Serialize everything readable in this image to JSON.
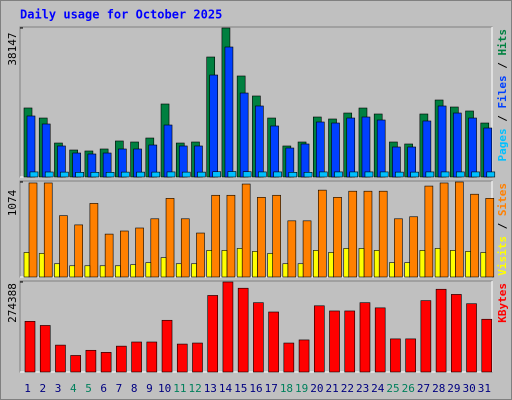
{
  "title": "Daily usage for October 2025",
  "legend_separator": " / ",
  "chart_data": [
    {
      "type": "bar",
      "ylim": [
        0,
        38147
      ],
      "yticks": [
        38147
      ],
      "series": [
        {
          "name": "Hits",
          "color": "#008040",
          "values": [
            17670,
            15100,
            8700,
            6910,
            6660,
            7170,
            9220,
            8960,
            9980,
            18690,
            8700,
            8960,
            30720,
            38147,
            25860,
            20740,
            15100,
            7940,
            8960,
            15360,
            14850,
            16380,
            17660,
            16130,
            8960,
            8450,
            16130,
            19710,
            17920,
            16900,
            13820
          ]
        },
        {
          "name": "Files",
          "color": "#0040ff",
          "values": [
            15620,
            13570,
            7940,
            6140,
            5890,
            6140,
            7170,
            7170,
            8190,
            13310,
            7940,
            7940,
            26110,
            33280,
            21500,
            18180,
            13060,
            7420,
            8450,
            14080,
            13820,
            15100,
            15360,
            14590,
            7680,
            7680,
            14340,
            18180,
            16380,
            15100,
            12540
          ]
        },
        {
          "name": "Pages",
          "color": "#00c0ff",
          "values": [
            1300,
            1280,
            1250,
            1200,
            1200,
            1200,
            1250,
            1250,
            1250,
            1300,
            1250,
            1250,
            1350,
            1400,
            1350,
            1300,
            1300,
            1200,
            1200,
            1300,
            1300,
            1300,
            1300,
            1300,
            1250,
            1250,
            1300,
            1300,
            1300,
            1300,
            1300
          ]
        }
      ]
    },
    {
      "type": "bar",
      "ylim": [
        0,
        1074
      ],
      "yticks": [
        1074
      ],
      "series": [
        {
          "name": "Sites",
          "color": "#ff8000",
          "values": [
            1063,
            1063,
            693,
            589,
            832,
            485,
            520,
            554,
            658,
            889,
            658,
            497,
            924,
            924,
            1051,
            901,
            924,
            635,
            635,
            982,
            901,
            970,
            970,
            970,
            658,
            681,
            1028,
            1063,
            1074,
            936,
            889
          ]
        },
        {
          "name": "Visits",
          "color": "#ffff00",
          "values": [
            277,
            266,
            150,
            127,
            127,
            127,
            127,
            139,
            162,
            219,
            150,
            150,
            300,
            300,
            323,
            289,
            266,
            150,
            150,
            300,
            277,
            323,
            323,
            300,
            162,
            162,
            300,
            323,
            300,
            289,
            277
          ]
        }
      ]
    },
    {
      "type": "bar",
      "ylim": [
        0,
        274388
      ],
      "yticks": [
        274388
      ],
      "categories": [
        "1",
        "2",
        "3",
        "4",
        "5",
        "6",
        "7",
        "8",
        "9",
        "10",
        "11",
        "12",
        "13",
        "14",
        "15",
        "16",
        "17",
        "18",
        "19",
        "20",
        "21",
        "22",
        "23",
        "24",
        "25",
        "26",
        "27",
        "28",
        "29",
        "30",
        "31"
      ],
      "category_colors": [
        "#000080",
        "#000080",
        "#000080",
        "#00805c",
        "#00805c",
        "#000080",
        "#000080",
        "#000080",
        "#000080",
        "#000080",
        "#00805c",
        "#00805c",
        "#000080",
        "#000080",
        "#000080",
        "#000080",
        "#000080",
        "#00805c",
        "#00805c",
        "#000080",
        "#000080",
        "#000080",
        "#000080",
        "#000080",
        "#00805c",
        "#00805c",
        "#000080",
        "#000080",
        "#000080",
        "#000080",
        "#000080"
      ],
      "series": [
        {
          "name": "KBytes",
          "color": "#ff0000",
          "values": [
            154540,
            141930,
            82000,
            50460,
            66230,
            59930,
            78850,
            91460,
            91460,
            157700,
            85160,
            88310,
            233400,
            274388,
            255470,
            211320,
            182930,
            88310,
            97770,
            201860,
            186090,
            186090,
            211320,
            195550,
            100930,
            100930,
            217630,
            252320,
            236550,
            208160,
            160850
          ]
        }
      ]
    }
  ]
}
